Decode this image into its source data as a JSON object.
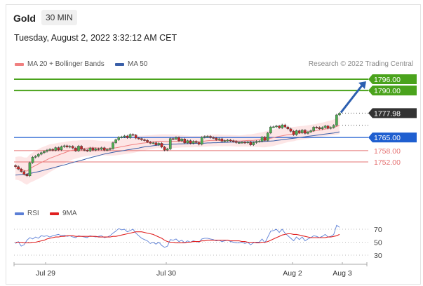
{
  "header": {
    "title": "Gold",
    "timeframe": "30 MIN",
    "datetime": "Tuesday, August 2, 2022 3:32:12 AM CET"
  },
  "legend": {
    "items": [
      {
        "label": "MA 20 + Bollinger Bands",
        "color": "#f08080"
      },
      {
        "label": "MA 50",
        "color": "#3a5fa8"
      }
    ],
    "research": "Research © 2022 Trading Central"
  },
  "rsi_legend": {
    "items": [
      {
        "label": "RSI",
        "color": "#5b7fd6"
      },
      {
        "label": "9MA",
        "color": "#e02020"
      }
    ]
  },
  "colors": {
    "up_candle": "#4caf50",
    "down_candle": "#c62828",
    "band_fill": "#fde2e2",
    "resistance": "#4aa31c",
    "support_major": "#1f5fd0",
    "support_minor": "#e57373",
    "current_tag": "#333333",
    "arrow": "#2c5fb0"
  },
  "chart_data": [
    {
      "type": "candlestick",
      "title": "Gold 30 MIN",
      "x_tick_labels": [
        "Jul 29",
        "Jul 30",
        "Aug 2",
        "Aug 3"
      ],
      "ylim": [
        1740,
        1800
      ],
      "price_levels": [
        {
          "label": "1796.00",
          "value": 1796.0,
          "kind": "resistance"
        },
        {
          "label": "1790.00",
          "value": 1790.0,
          "kind": "resistance"
        },
        {
          "label": "1777.98",
          "value": 1777.98,
          "kind": "current"
        },
        {
          "label": "1765.00",
          "value": 1765.0,
          "kind": "support-major"
        },
        {
          "label": "1758.00",
          "value": 1758.0,
          "kind": "support-minor"
        },
        {
          "label": "1752.00",
          "value": 1752.0,
          "kind": "support-minor"
        }
      ],
      "close": [
        1749.5,
        1748.2,
        1746.9,
        1745.4,
        1744.6,
        1751.6,
        1754.5,
        1755.0,
        1756.1,
        1756.9,
        1757.6,
        1758.3,
        1758.7,
        1758.2,
        1759.6,
        1758.4,
        1760.1,
        1760.6,
        1759.9,
        1760.3,
        1759.4,
        1757.9,
        1760.4,
        1758.7,
        1758.3,
        1757.8,
        1759.4,
        1758.3,
        1759.0,
        1758.7,
        1759.5,
        1758.3,
        1758.6,
        1759.1,
        1762.2,
        1763.8,
        1765.1,
        1765.3,
        1765.8,
        1764.9,
        1766.6,
        1766.3,
        1764.7,
        1764.4,
        1763.8,
        1763.5,
        1762.6,
        1762.0,
        1762.2,
        1761.1,
        1761.9,
        1759.9,
        1758.3,
        1758.9,
        1764.4,
        1764.2,
        1765.0,
        1763.2,
        1764.2,
        1762.1,
        1763.3,
        1761.9,
        1762.9,
        1762.3,
        1761.4,
        1765.1,
        1765.5,
        1765.6,
        1765.0,
        1764.7,
        1763.8,
        1764.3,
        1763.0,
        1763.3,
        1763.6,
        1763.2,
        1762.9,
        1762.3,
        1762.3,
        1762.5,
        1762.2,
        1762.6,
        1761.1,
        1762.3,
        1762.9,
        1763.0,
        1765.2,
        1763.4,
        1767.4,
        1770.6,
        1770.7,
        1771.1,
        1770.1,
        1771.7,
        1770.6,
        1769.6,
        1768.3,
        1766.5,
        1768.6,
        1767.5,
        1768.9,
        1767.2,
        1768.0,
        1768.6,
        1770.5,
        1770.3,
        1769.6,
        1770.3,
        1771.1,
        1769.9,
        1770.3,
        1771.5,
        1777.0,
        1777.9
      ],
      "ma20": [
        1748.6,
        1748.6,
        1748.3,
        1747.5,
        1747.1,
        1748.4,
        1749.3,
        1750.1,
        1750.9,
        1751.7,
        1752.4,
        1753.2,
        1754.0,
        1754.5,
        1755.1,
        1755.7,
        1756.3,
        1756.8,
        1757.4,
        1757.9,
        1758.3,
        1758.5,
        1758.8,
        1759.1,
        1759.3,
        1759.4,
        1759.5,
        1759.5,
        1759.5,
        1759.4,
        1759.4,
        1759.3,
        1759.2,
        1759.2,
        1759.3,
        1759.5,
        1759.8,
        1760.1,
        1760.4,
        1760.7,
        1761.0,
        1761.2,
        1761.4,
        1761.7,
        1761.9,
        1762.1,
        1762.3,
        1762.5,
        1762.7,
        1762.9,
        1763.0,
        1763.0,
        1762.9,
        1762.8,
        1762.9,
        1763.0,
        1763.0,
        1763.0,
        1763.0,
        1762.9,
        1762.9,
        1762.8,
        1762.8,
        1762.9,
        1762.8,
        1763.0,
        1763.1,
        1763.3,
        1763.4,
        1763.4,
        1763.5,
        1763.5,
        1763.4,
        1763.4,
        1763.4,
        1763.4,
        1763.3,
        1763.2,
        1763.1,
        1763.2,
        1763.3,
        1763.4,
        1763.4,
        1763.5,
        1763.6,
        1763.7,
        1763.8,
        1764.0,
        1764.3,
        1764.6,
        1764.9,
        1765.3,
        1765.6,
        1765.9,
        1766.2,
        1766.5,
        1766.7,
        1766.8,
        1767.1,
        1767.3,
        1767.5,
        1767.7,
        1767.9,
        1768.2,
        1768.4,
        1768.7,
        1769.0,
        1769.2,
        1769.5,
        1769.8,
        1770.1,
        1770.4,
        1770.9,
        1771.4
      ],
      "ma50": [
        1745.0,
        1745.1,
        1745.3,
        1745.4,
        1745.6,
        1745.9,
        1746.2,
        1746.5,
        1746.8,
        1747.2,
        1747.6,
        1748.0,
        1748.4,
        1748.8,
        1749.2,
        1749.6,
        1750.0,
        1750.4,
        1750.8,
        1751.3,
        1751.7,
        1752.1,
        1752.5,
        1752.9,
        1753.3,
        1753.8,
        1754.2,
        1754.6,
        1755.0,
        1755.4,
        1755.8,
        1756.2,
        1756.5,
        1756.8,
        1757.1,
        1757.4,
        1757.6,
        1757.9,
        1758.1,
        1758.4,
        1758.6,
        1758.9,
        1759.2,
        1759.4,
        1759.7,
        1760.0,
        1760.2,
        1760.4,
        1760.6,
        1760.8,
        1761.0,
        1761.1,
        1761.2,
        1761.3,
        1761.4,
        1761.5,
        1761.5,
        1761.6,
        1761.6,
        1761.7,
        1761.7,
        1761.8,
        1761.8,
        1761.9,
        1761.9,
        1762.0,
        1762.0,
        1762.1,
        1762.1,
        1762.2,
        1762.2,
        1762.3,
        1762.3,
        1762.4,
        1762.4,
        1762.5,
        1762.5,
        1762.5,
        1762.5,
        1762.6,
        1762.6,
        1762.6,
        1762.7,
        1762.7,
        1762.7,
        1762.8,
        1762.8,
        1762.9,
        1763.0,
        1763.1,
        1763.2,
        1763.4,
        1763.6,
        1763.8,
        1764.0,
        1764.2,
        1764.4,
        1764.6,
        1764.8,
        1765.0,
        1765.2,
        1765.4,
        1765.6,
        1765.8,
        1766.0,
        1766.2,
        1766.4,
        1766.6,
        1766.8,
        1767.0,
        1767.2,
        1767.4,
        1767.7,
        1768.0
      ],
      "bb_width": [
        6,
        6.3,
        6.6,
        6.9,
        7.2,
        7.5,
        7.7,
        7.8,
        7.9,
        7.9,
        7.8,
        7.6,
        7.4,
        7.1,
        6.8,
        6.5,
        6.1,
        5.8,
        5.5,
        5.2,
        5.0,
        4.8,
        4.6,
        4.5,
        4.4,
        4.3,
        4.2,
        4.1,
        4.0,
        3.9,
        3.8,
        3.8,
        3.8,
        3.8,
        3.9,
        4.0,
        4.1,
        4.2,
        4.3,
        4.4,
        4.4,
        4.4,
        4.3,
        4.2,
        4.1,
        4.0,
        3.9,
        3.8,
        3.7,
        3.6,
        3.6,
        3.7,
        3.8,
        3.8,
        3.7,
        3.6,
        3.5,
        3.4,
        3.3,
        3.2,
        3.1,
        3.0,
        3.0,
        3.0,
        3.0,
        3.0,
        3.0,
        3.1,
        3.1,
        3.1,
        3.1,
        3.1,
        3.1,
        3.0,
        3.0,
        3.0,
        3.0,
        3.0,
        3.0,
        3.0,
        3.1,
        3.2,
        3.3,
        3.4,
        3.6,
        3.8,
        4.0,
        4.2,
        4.3,
        4.4,
        4.4,
        4.4,
        4.3,
        4.2,
        4.1,
        4.0,
        3.9,
        3.8,
        3.7,
        3.7,
        3.6,
        3.6,
        3.6,
        3.6,
        3.6,
        3.6,
        3.7,
        3.7,
        3.8,
        3.9,
        4.0,
        4.2,
        4.4,
        4.6
      ]
    },
    {
      "type": "line",
      "title": "RSI",
      "y_ticks": [
        30,
        50,
        70
      ],
      "ylim": [
        20,
        80
      ],
      "series": [
        {
          "name": "RSI",
          "values": [
            48,
            51,
            44,
            46,
            53,
            57,
            55,
            58,
            56,
            60,
            59,
            60,
            58,
            60,
            61,
            62,
            60,
            61,
            59,
            60,
            58,
            57,
            60,
            59,
            58,
            57,
            60,
            59,
            58,
            59,
            60,
            57,
            58,
            60,
            64,
            67,
            71,
            69,
            70,
            66,
            68,
            70,
            64,
            60,
            56,
            54,
            52,
            48,
            50,
            47,
            50,
            45,
            42,
            44,
            54,
            53,
            55,
            51,
            53,
            49,
            52,
            50,
            52,
            51,
            50,
            55,
            56,
            56,
            55,
            54,
            52,
            53,
            51,
            52,
            53,
            51,
            50,
            49,
            49,
            50,
            48,
            50,
            46,
            49,
            50,
            50,
            55,
            49,
            58,
            67,
            68,
            70,
            65,
            70,
            64,
            60,
            56,
            52,
            58,
            54,
            58,
            52,
            55,
            57,
            60,
            59,
            57,
            59,
            62,
            58,
            59,
            62,
            76,
            73
          ]
        },
        {
          "name": "9MA",
          "values": [
            50,
            50,
            50,
            49,
            49,
            49,
            50,
            50,
            51,
            52,
            53,
            55,
            56,
            57,
            58,
            58,
            59,
            59,
            60,
            60,
            60,
            59,
            59,
            59,
            59,
            59,
            59,
            59,
            59,
            58,
            58,
            58,
            58,
            58,
            59,
            59,
            60,
            61,
            62,
            63,
            64,
            65,
            66,
            66,
            66,
            65,
            64,
            63,
            62,
            60,
            58,
            56,
            53,
            51,
            50,
            50,
            49,
            49,
            49,
            49,
            50,
            50,
            51,
            51,
            51,
            52,
            52,
            53,
            53,
            53,
            53,
            53,
            53,
            53,
            53,
            52,
            52,
            52,
            52,
            51,
            51,
            50,
            50,
            50,
            49,
            49,
            50,
            50,
            51,
            53,
            55,
            57,
            59,
            61,
            62,
            63,
            63,
            62,
            62,
            61,
            60,
            59,
            58,
            57,
            57,
            57,
            57,
            57,
            57,
            58,
            58,
            59,
            60,
            62
          ]
        }
      ]
    }
  ]
}
